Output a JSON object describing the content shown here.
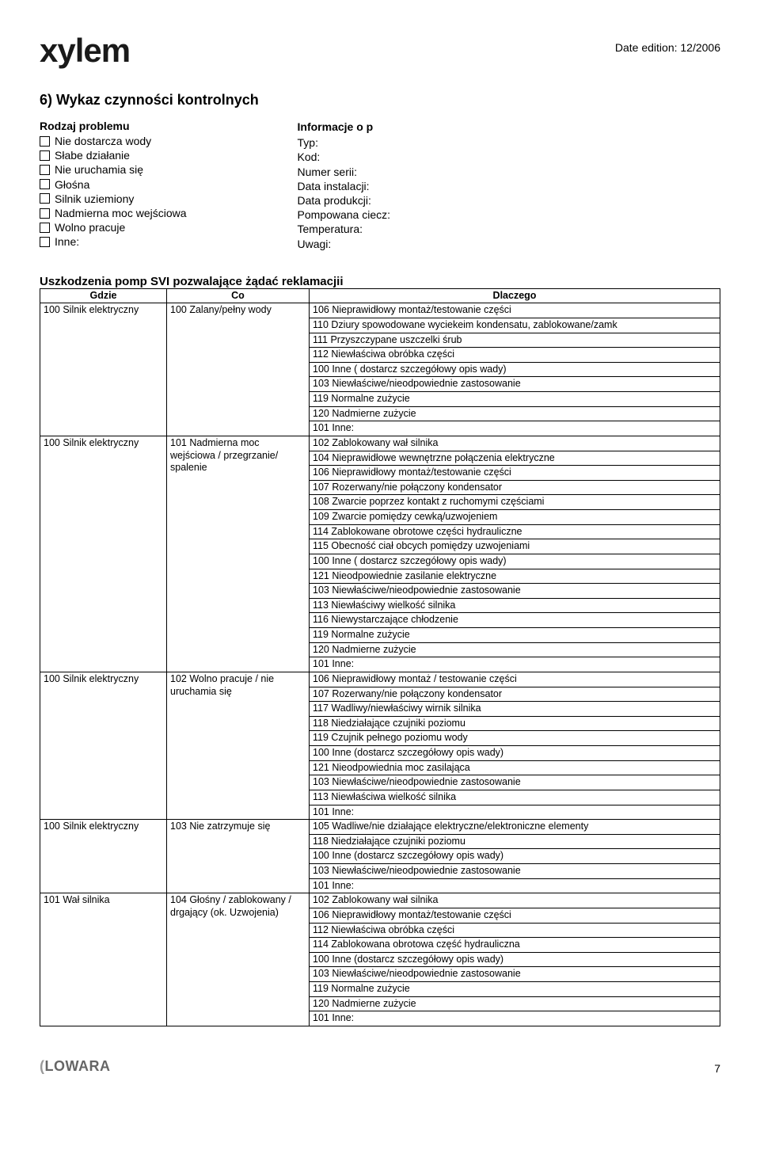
{
  "header": {
    "logo_text": "xylem",
    "date_edition": "Date edition: 12/2006"
  },
  "section_title": "6) Wykaz czynności kontrolnych",
  "problem": {
    "head": "Rodzaj problemu",
    "items": [
      "Nie dostarcza wody",
      "Słabe działanie",
      "Nie uruchamia się",
      "Głośna",
      "Silnik uziemiony",
      "Nadmierna moc wejściowa",
      "Wolno pracuje",
      "Inne:"
    ]
  },
  "info": {
    "head": "Informacje o p",
    "fields": [
      "Typ:",
      "Kod:",
      "Numer serii:",
      "Data instalacji:",
      "Data produkcji:",
      "Pompowana ciecz:",
      "Temperatura:",
      "Uwagi:"
    ]
  },
  "damage": {
    "title": "Uszkodzenia pomp SVI pozwalające żądać reklamacjii",
    "headers": [
      "Gdzie",
      "Co",
      "Dlaczego"
    ],
    "groups": [
      {
        "where": "100 Silnik elektryczny",
        "what": "100 Zalany/pełny wody",
        "why": [
          "106 Nieprawidłowy montaż/testowanie części",
          "110 Dziury spowodowane wyciekeim kondensatu, zablokowane/zamk",
          "111 Przyszczypane uszczelki śrub",
          "112 Niewłaściwa obróbka części",
          "100 Inne ( dostarcz szczegółowy opis wady)",
          "103 Niewłaściwe/nieodpowiednie zastosowanie",
          "119 Normalne zużycie",
          "120 Nadmierne zużycie",
          "101 Inne:"
        ]
      },
      {
        "where": "100 Silnik elektryczny",
        "what": "101 Nadmierna moc wejściowa / przegrzanie/ spalenie",
        "why": [
          "102 Zablokowany wał silnika",
          "104 Nieprawidłowe wewnętrzne połączenia       elektryczne",
          "106 Nieprawidłowy montaż/testowanie części",
          "107 Rozerwany/nie połączony kondensator",
          "108 Zwarcie poprzez kontakt  z ruchomymi częściami",
          "109 Zwarcie pomiędzy cewką/uzwojeniem",
          "114 Zablokowane obrotowe części hydrauliczne",
          "115 Obecność ciał obcych pomiędzy uzwojeniami",
          "100  Inne ( dostarcz szczegółowy opis wady)",
          "121 Nieodpowiednie zasilanie elektryczne",
          "103 Niewłaściwe/nieodpowiednie zastosowanie",
          "113 Niewłaściwy wielkość silnika",
          "116 Niewystarczające chłodzenie",
          "119 Normalne zużycie",
          "120 Nadmierne zużycie",
          "101 Inne:"
        ]
      },
      {
        "where": "100 Silnik elektryczny",
        "what": "102 Wolno pracuje / nie uruchamia się",
        "why": [
          "106  Nieprawidłowy montaż / testowanie części",
          "107 Rozerwany/nie połączony kondensator",
          "117 Wadliwy/niewłaściwy wirnik silnika",
          "118 Niedziałające czujniki poziomu",
          "119 Czujnik pełnego poziomu wody",
          "100 Inne (dostarcz szczegółowy opis wady)",
          "121 Nieodpowiednia moc zasilająca",
          "103 Niewłaściwe/nieodpowiednie zastosowanie",
          "113 Niewłaściwa wielkość silnika",
          "101 Inne:"
        ]
      },
      {
        "where": "100 Silnik elektryczny",
        "what": "103 Nie zatrzymuje się",
        "why": [
          "105 Wadliwe/nie działające elektryczne/elektroniczne elementy",
          "118 Niedziałające czujniki poziomu",
          "100 Inne (dostarcz szczegółowy opis wady)",
          "103 Niewłaściwe/nieodpowiednie zastosowanie",
          "101 Inne:"
        ]
      },
      {
        "where": "101 Wał silnika",
        "what": "104 Głośny / zablokowany / drgający (ok. Uzwojenia)",
        "why": [
          "102 Zablokowany wał silnika",
          "106 Nieprawidłowy montaż/testowanie części",
          "112 Niewłaściwa obróbka części",
          "114 Zablokowana obrotowa część hydrauliczna",
          "100 Inne (dostarcz szczegółowy opis wady)",
          "103 Niewłaściwe/nieodpowiednie zastosowanie",
          "119 Normalne zużycie",
          "120 Nadmierne zużycie",
          "101 Inne:"
        ]
      }
    ]
  },
  "footer": {
    "logo": "LOWARA",
    "page": "7"
  }
}
